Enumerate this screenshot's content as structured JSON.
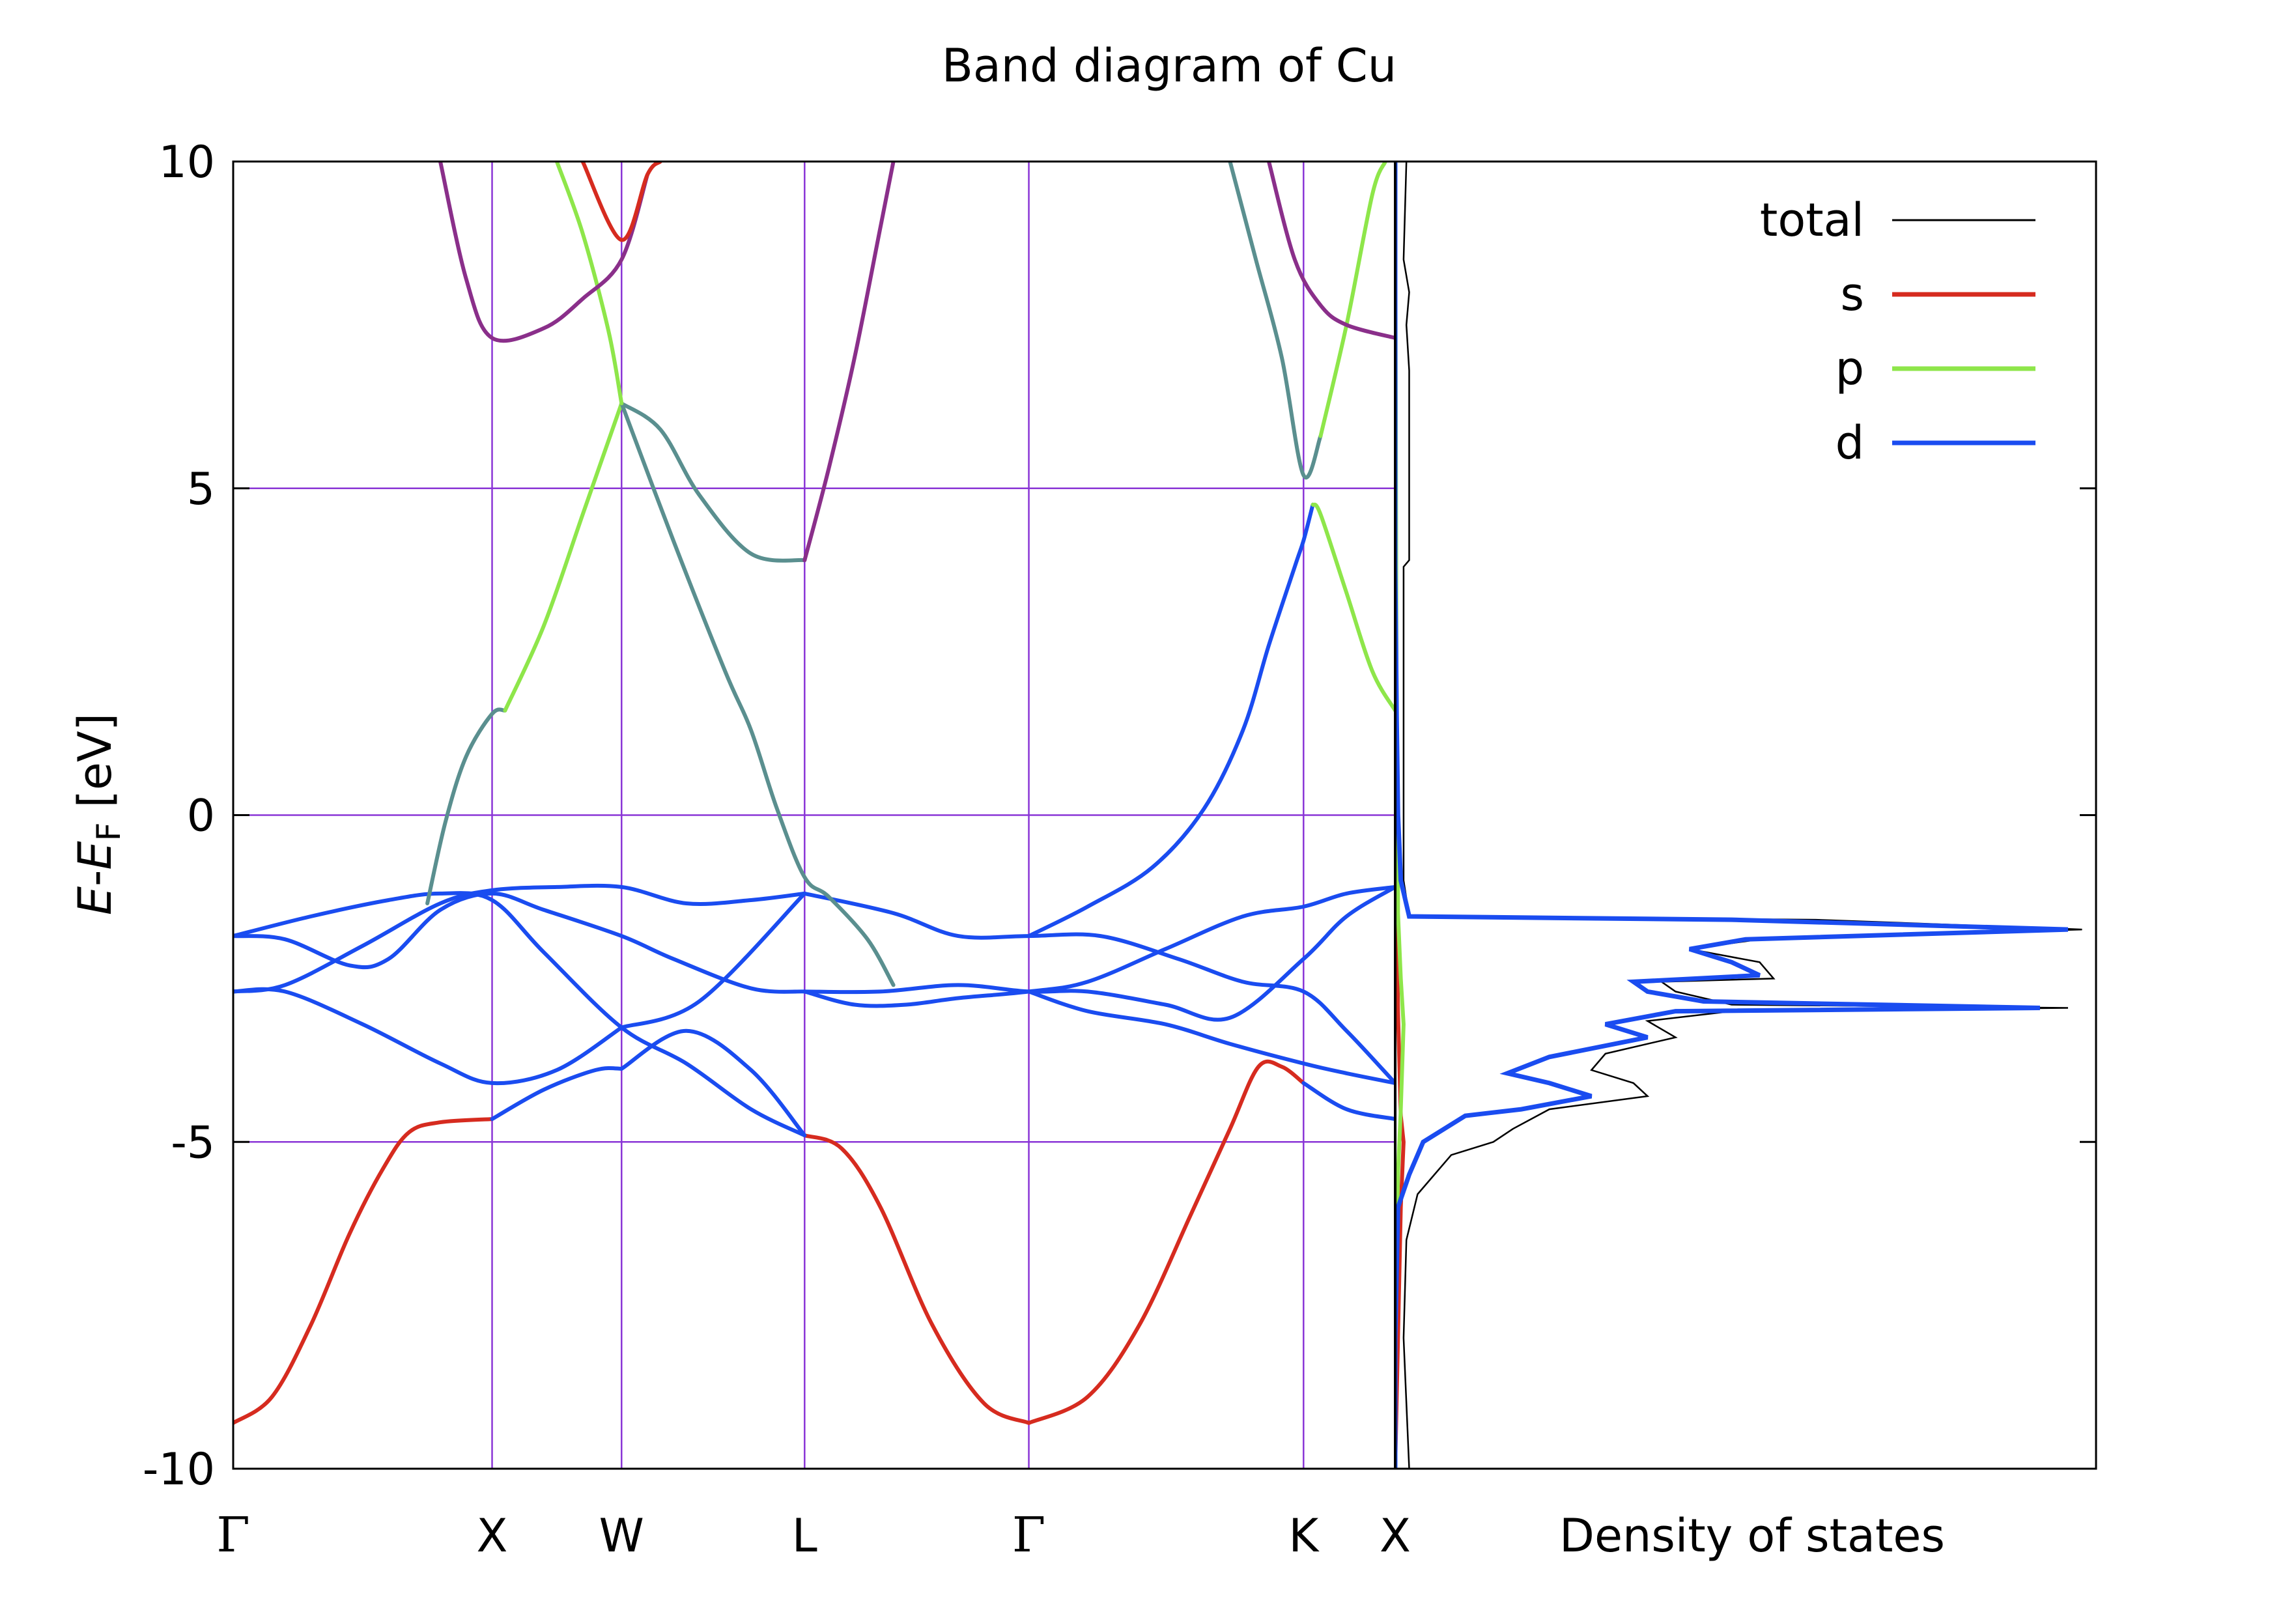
{
  "chart_data": {
    "type": "line",
    "title": "Band diagram of Cu",
    "ylabel": {
      "E": "E",
      "minus": "-",
      "EF": "E",
      "F": "F",
      "unit": " [eV]"
    },
    "ylim": [
      -10,
      10
    ],
    "yticks": [
      {
        "value": 10,
        "label": "10"
      },
      {
        "value": 5,
        "label": "5"
      },
      {
        "value": 0,
        "label": "0"
      },
      {
        "value": -5,
        "label": "-5"
      },
      {
        "value": -10,
        "label": "-10"
      }
    ],
    "kpath": [
      {
        "label": "Γ",
        "x": 0.0
      },
      {
        "label": "X",
        "x": 1.0
      },
      {
        "label": "W",
        "x": 1.5
      },
      {
        "label": "L",
        "x": 2.207
      },
      {
        "label": "Γ",
        "x": 3.073
      },
      {
        "label": "K",
        "x": 4.134
      },
      {
        "label": "X",
        "x": 4.488
      }
    ],
    "grid": true,
    "dos_xlabel": "Density of states",
    "legend": {
      "position": "top-right",
      "entries": [
        {
          "name": "total",
          "color": "#000000"
        },
        {
          "name": "s",
          "color": "#d62b1f"
        },
        {
          "name": "p",
          "color": "#8ee64a"
        },
        {
          "name": "d",
          "color": "#1a4cf0"
        }
      ]
    },
    "colors": {
      "grid": "#8a35d6",
      "s": "#d62b1f",
      "p": "#8ee64a",
      "d": "#1a4cf0",
      "mixed_sd": "#8a2f8a",
      "mixed_pd": "#5a8f8f",
      "total": "#000000"
    },
    "bands": [
      {
        "character": "s",
        "points": [
          [
            0,
            -9.3
          ],
          [
            0.15,
            -8.9
          ],
          [
            0.3,
            -7.8
          ],
          [
            0.45,
            -6.4
          ],
          [
            0.58,
            -5.4
          ],
          [
            0.68,
            -4.85
          ],
          [
            0.8,
            -4.7
          ],
          [
            1.0,
            -4.65
          ]
        ]
      },
      {
        "character": "d",
        "points": [
          [
            1.0,
            -4.65
          ],
          [
            1.2,
            -4.2
          ],
          [
            1.4,
            -3.9
          ],
          [
            1.5,
            -3.88
          ]
        ]
      },
      {
        "character": "d",
        "points": [
          [
            1.5,
            -3.88
          ],
          [
            1.75,
            -3.3
          ],
          [
            2.0,
            -3.9
          ],
          [
            2.207,
            -4.9
          ]
        ]
      },
      {
        "character": "s",
        "points": [
          [
            2.207,
            -4.9
          ],
          [
            2.35,
            -5.1
          ],
          [
            2.5,
            -6.0
          ],
          [
            2.7,
            -7.8
          ],
          [
            2.9,
            -9.0
          ],
          [
            3.073,
            -9.3
          ]
        ]
      },
      {
        "character": "s",
        "points": [
          [
            3.073,
            -9.3
          ],
          [
            3.3,
            -8.9
          ],
          [
            3.5,
            -7.8
          ],
          [
            3.7,
            -6.1
          ],
          [
            3.85,
            -4.8
          ],
          [
            3.96,
            -3.85
          ],
          [
            4.05,
            -3.85
          ],
          [
            4.134,
            -4.1
          ]
        ]
      },
      {
        "character": "d",
        "points": [
          [
            4.134,
            -4.1
          ],
          [
            4.3,
            -4.5
          ],
          [
            4.488,
            -4.65
          ]
        ]
      },
      {
        "character": "d",
        "points": [
          [
            0,
            -2.7
          ],
          [
            0.2,
            -2.7
          ],
          [
            0.5,
            -3.2
          ],
          [
            0.8,
            -3.8
          ],
          [
            1.0,
            -4.1
          ],
          [
            1.25,
            -3.9
          ],
          [
            1.5,
            -3.25
          ]
        ]
      },
      {
        "character": "d",
        "points": [
          [
            0,
            -2.7
          ],
          [
            0.2,
            -2.6
          ],
          [
            0.5,
            -2.0
          ],
          [
            0.8,
            -1.35
          ],
          [
            1.0,
            -1.15
          ],
          [
            1.25,
            -1.1
          ],
          [
            1.5,
            -1.1
          ],
          [
            1.75,
            -1.35
          ],
          [
            2.0,
            -1.3
          ],
          [
            2.207,
            -1.2
          ]
        ]
      },
      {
        "character": "d",
        "points": [
          [
            0,
            -1.85
          ],
          [
            0.2,
            -1.9
          ],
          [
            0.45,
            -2.3
          ],
          [
            0.6,
            -2.2
          ],
          [
            0.8,
            -1.45
          ],
          [
            1.0,
            -1.2
          ],
          [
            1.2,
            -1.45
          ],
          [
            1.5,
            -1.85
          ],
          [
            1.7,
            -2.2
          ],
          [
            2.0,
            -2.65
          ],
          [
            2.207,
            -2.7
          ]
        ]
      },
      {
        "character": "d",
        "points": [
          [
            0,
            -1.85
          ],
          [
            0.3,
            -1.55
          ],
          [
            0.6,
            -1.3
          ],
          [
            0.8,
            -1.2
          ],
          [
            1.0,
            -1.3
          ],
          [
            1.2,
            -2.1
          ],
          [
            1.5,
            -3.25
          ],
          [
            1.75,
            -3.8
          ],
          [
            2.0,
            -4.5
          ],
          [
            2.207,
            -4.9
          ]
        ]
      },
      {
        "character": "d",
        "points": [
          [
            1.5,
            -3.25
          ],
          [
            1.8,
            -2.85
          ],
          [
            2.207,
            -1.2
          ]
        ]
      },
      {
        "character": "d",
        "points": [
          [
            2.207,
            -2.7
          ],
          [
            2.5,
            -2.7
          ],
          [
            2.8,
            -2.6
          ],
          [
            3.073,
            -2.7
          ],
          [
            3.3,
            -2.7
          ],
          [
            3.6,
            -2.9
          ],
          [
            3.85,
            -3.1
          ],
          [
            4.134,
            -2.2
          ],
          [
            4.3,
            -1.55
          ],
          [
            4.488,
            -1.1
          ]
        ]
      },
      {
        "character": "d",
        "points": [
          [
            2.207,
            -1.2
          ],
          [
            2.55,
            -1.5
          ],
          [
            2.8,
            -1.85
          ],
          [
            3.073,
            -1.85
          ],
          [
            3.35,
            -1.85
          ],
          [
            3.65,
            -2.2
          ],
          [
            3.9,
            -2.55
          ],
          [
            4.134,
            -2.7
          ],
          [
            4.3,
            -3.3
          ],
          [
            4.488,
            -4.1
          ]
        ]
      },
      {
        "character": "d",
        "points": [
          [
            2.207,
            -2.7
          ],
          [
            2.4,
            -2.9
          ],
          [
            2.6,
            -2.9
          ],
          [
            2.8,
            -2.8
          ],
          [
            3.073,
            -2.7
          ],
          [
            3.3,
            -2.55
          ],
          [
            3.6,
            -2.05
          ],
          [
            3.9,
            -1.55
          ],
          [
            4.134,
            -1.4
          ],
          [
            4.3,
            -1.2
          ],
          [
            4.488,
            -1.1
          ]
        ]
      },
      {
        "character": "d",
        "points": [
          [
            3.073,
            -2.7
          ],
          [
            3.3,
            -3.0
          ],
          [
            3.6,
            -3.2
          ],
          [
            3.85,
            -3.5
          ],
          [
            4.134,
            -3.8
          ],
          [
            4.3,
            -3.95
          ],
          [
            4.488,
            -4.1
          ]
        ]
      },
      {
        "character": "d",
        "points": [
          [
            3.073,
            -1.85
          ],
          [
            3.3,
            -1.4
          ],
          [
            3.55,
            -0.8
          ],
          [
            3.75,
            0.1
          ],
          [
            3.9,
            1.3
          ],
          [
            4.0,
            2.6
          ],
          [
            4.1,
            3.8
          ],
          [
            4.134,
            4.2
          ],
          [
            4.17,
            4.75
          ]
        ]
      },
      {
        "character": "p",
        "points": [
          [
            4.17,
            4.75
          ],
          [
            4.2,
            4.6
          ],
          [
            4.3,
            3.4
          ],
          [
            4.4,
            2.2
          ],
          [
            4.488,
            1.6
          ]
        ]
      },
      {
        "character": "mixed_pd",
        "points": [
          [
            0.75,
            -1.35
          ],
          [
            0.82,
            -0.1
          ],
          [
            0.9,
            0.9
          ],
          [
            1.0,
            1.55
          ],
          [
            1.05,
            1.6
          ]
        ]
      },
      {
        "character": "p",
        "points": [
          [
            1.05,
            1.6
          ],
          [
            1.2,
            2.9
          ],
          [
            1.35,
            4.6
          ],
          [
            1.5,
            6.3
          ]
        ]
      },
      {
        "character": "mixed_pd",
        "points": [
          [
            1.5,
            6.3
          ],
          [
            1.65,
            5.9
          ],
          [
            1.8,
            4.9
          ],
          [
            2.0,
            4.0
          ],
          [
            2.207,
            3.9
          ]
        ]
      },
      {
        "character": "mixed_sd",
        "points": [
          [
            2.207,
            3.9
          ],
          [
            2.3,
            5.3
          ],
          [
            2.4,
            7.0
          ],
          [
            2.5,
            9.0
          ],
          [
            2.55,
            10
          ]
        ]
      },
      {
        "character": "mixed_pd",
        "points": [
          [
            1.5,
            6.3
          ],
          [
            1.7,
            4.2
          ],
          [
            1.9,
            2.2
          ],
          [
            2.0,
            1.3
          ],
          [
            2.1,
            0.1
          ],
          [
            2.207,
            -0.95
          ],
          [
            2.3,
            -1.25
          ],
          [
            2.45,
            -1.9
          ],
          [
            2.55,
            -2.6
          ]
        ]
      },
      {
        "character": "p",
        "points": [
          [
            1.25,
            10
          ],
          [
            1.35,
            8.9
          ],
          [
            1.45,
            7.4
          ],
          [
            1.5,
            6.3
          ]
        ]
      },
      {
        "character": "mixed_sd",
        "points": [
          [
            0.8,
            10
          ],
          [
            0.9,
            8.2
          ],
          [
            1.0,
            7.3
          ],
          [
            1.2,
            7.45
          ],
          [
            1.35,
            7.9
          ],
          [
            1.5,
            8.5
          ],
          [
            1.6,
            9.8
          ]
        ]
      },
      {
        "character": "s",
        "points": [
          [
            1.35,
            10
          ],
          [
            1.5,
            8.8
          ],
          [
            1.6,
            9.8
          ],
          [
            1.65,
            10
          ]
        ]
      },
      {
        "character": "mixed_pd",
        "points": [
          [
            3.85,
            10
          ],
          [
            3.95,
            8.5
          ],
          [
            4.05,
            7.0
          ],
          [
            4.134,
            5.2
          ],
          [
            4.2,
            5.8
          ]
        ]
      },
      {
        "character": "p",
        "points": [
          [
            4.2,
            5.8
          ],
          [
            4.3,
            7.5
          ],
          [
            4.4,
            9.5
          ],
          [
            4.45,
            10
          ]
        ]
      },
      {
        "character": "mixed_sd",
        "points": [
          [
            4.0,
            10
          ],
          [
            4.1,
            8.5
          ],
          [
            4.2,
            7.8
          ],
          [
            4.3,
            7.5
          ],
          [
            4.488,
            7.3
          ]
        ]
      }
    ],
    "dos": {
      "xlim": [
        0,
        2.5
      ],
      "total": [
        [
          0.05,
          -10
        ],
        [
          0.03,
          -8
        ],
        [
          0.04,
          -6.5
        ],
        [
          0.08,
          -5.8
        ],
        [
          0.2,
          -5.2
        ],
        [
          0.35,
          -5.0
        ],
        [
          0.42,
          -4.8
        ],
        [
          0.55,
          -4.5
        ],
        [
          0.9,
          -4.3
        ],
        [
          0.85,
          -4.1
        ],
        [
          0.7,
          -3.9
        ],
        [
          0.75,
          -3.65
        ],
        [
          1.0,
          -3.4
        ],
        [
          0.9,
          -3.15
        ],
        [
          1.2,
          -3.0
        ],
        [
          2.4,
          -2.95
        ],
        [
          1.2,
          -2.9
        ],
        [
          1.0,
          -2.7
        ],
        [
          0.95,
          -2.55
        ],
        [
          1.35,
          -2.5
        ],
        [
          1.3,
          -2.25
        ],
        [
          1.05,
          -2.05
        ],
        [
          1.3,
          -1.9
        ],
        [
          2.45,
          -1.75
        ],
        [
          1.5,
          -1.6
        ],
        [
          0.05,
          -1.55
        ],
        [
          0.03,
          -1.0
        ],
        [
          0.03,
          0
        ],
        [
          0.03,
          1.5
        ],
        [
          0.03,
          3.8
        ],
        [
          0.05,
          3.9
        ],
        [
          0.05,
          5
        ],
        [
          0.05,
          6.8
        ],
        [
          0.04,
          7.5
        ],
        [
          0.05,
          8.0
        ],
        [
          0.03,
          8.5
        ],
        [
          0.04,
          10
        ]
      ],
      "d": [
        [
          0.0,
          -10
        ],
        [
          0.0,
          -8
        ],
        [
          0.01,
          -6.0
        ],
        [
          0.05,
          -5.5
        ],
        [
          0.1,
          -5.0
        ],
        [
          0.25,
          -4.6
        ],
        [
          0.45,
          -4.5
        ],
        [
          0.7,
          -4.3
        ],
        [
          0.55,
          -4.1
        ],
        [
          0.4,
          -3.95
        ],
        [
          0.55,
          -3.7
        ],
        [
          0.9,
          -3.4
        ],
        [
          0.75,
          -3.2
        ],
        [
          1.0,
          -3.0
        ],
        [
          2.3,
          -2.95
        ],
        [
          1.1,
          -2.85
        ],
        [
          0.9,
          -2.7
        ],
        [
          0.85,
          -2.55
        ],
        [
          1.3,
          -2.45
        ],
        [
          1.2,
          -2.25
        ],
        [
          1.05,
          -2.05
        ],
        [
          1.25,
          -1.9
        ],
        [
          2.4,
          -1.75
        ],
        [
          1.2,
          -1.6
        ],
        [
          0.05,
          -1.55
        ],
        [
          0.02,
          -1.0
        ],
        [
          0.01,
          0
        ],
        [
          0.005,
          1.5
        ],
        [
          0.0,
          3.8
        ],
        [
          0.0,
          10
        ]
      ],
      "s": [
        [
          0.0,
          -10
        ],
        [
          0.01,
          -8
        ],
        [
          0.02,
          -6
        ],
        [
          0.03,
          -5.0
        ],
        [
          0.02,
          -4.6
        ],
        [
          0.01,
          -3.0
        ],
        [
          0.005,
          -1.5
        ],
        [
          0.0,
          0
        ],
        [
          0.0,
          10
        ]
      ],
      "p": [
        [
          0.0,
          -10
        ],
        [
          0.0,
          -8
        ],
        [
          0.01,
          -5.5
        ],
        [
          0.02,
          -4.5
        ],
        [
          0.03,
          -3.2
        ],
        [
          0.02,
          -2.5
        ],
        [
          0.01,
          -1.5
        ],
        [
          0.01,
          0
        ],
        [
          0.005,
          1.5
        ],
        [
          0.0,
          10
        ]
      ]
    }
  }
}
